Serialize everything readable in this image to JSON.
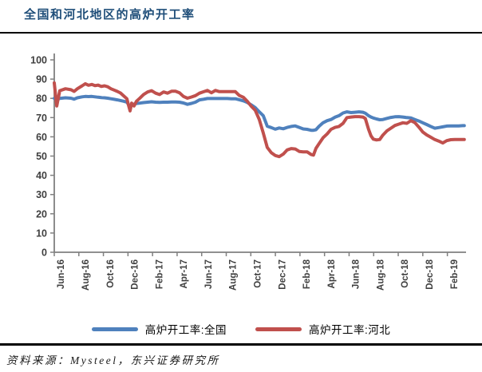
{
  "header": {
    "title": "全国和河北地区的高炉开工率",
    "title_color": "#1F4E79"
  },
  "footer": {
    "source_text": "资料来源：Mysteel，东兴证券研究所"
  },
  "colors": {
    "national_line": "#4F81BD",
    "hebei_line": "#C0504D",
    "axis": "#808080",
    "tick_label": "#3f3f3f",
    "rule": "#000000"
  },
  "chart_data": {
    "type": "line",
    "title": "全国和河北地区的高炉开工率",
    "xlabel": "",
    "ylabel": "",
    "ylim": [
      0,
      100
    ],
    "y_ticks": [
      0,
      10,
      20,
      30,
      40,
      50,
      60,
      70,
      80,
      90,
      100
    ],
    "grid": false,
    "legend_position": "bottom",
    "x_unit": "months since Jun-16 (fractional = weekly readings)",
    "x_tick_step_months": 2,
    "x_tick_labels": [
      "Jun-16",
      "Aug-16",
      "Oct-16",
      "Dec-16",
      "Feb-17",
      "Apr-17",
      "Jun-17",
      "Aug-17",
      "Oct-17",
      "Dec-17",
      "Feb-18",
      "Apr-18",
      "Jun-18",
      "Aug-18",
      "Oct-18",
      "Dec-18",
      "Feb-19"
    ],
    "x": [
      -0.5,
      -0.3,
      -0.05,
      0.41,
      0.86,
      1.12,
      1.38,
      1.77,
      2.03,
      2.29,
      2.55,
      2.81,
      3.07,
      3.33,
      3.59,
      3.85,
      4.11,
      4.37,
      4.63,
      4.89,
      5.15,
      5.41,
      5.54,
      5.67,
      5.8,
      5.99,
      6.19,
      6.45,
      6.77,
      7.1,
      7.42,
      7.75,
      8.07,
      8.4,
      8.72,
      9.05,
      9.37,
      9.69,
      10.02,
      10.34,
      10.67,
      10.99,
      11.32,
      11.64,
      11.97,
      12.29,
      12.62,
      12.94,
      13.27,
      13.59,
      13.92,
      14.24,
      14.56,
      14.89,
      15.21,
      15.54,
      15.86,
      16.19,
      16.51,
      16.84,
      17.16,
      17.49,
      17.81,
      18.14,
      18.46,
      18.79,
      19.11,
      19.44,
      19.76,
      20.08,
      20.41,
      20.6,
      20.8,
      21.06,
      21.38,
      21.71,
      22.03,
      22.36,
      22.68,
      23.01,
      23.33,
      23.66,
      23.98,
      24.31,
      24.63,
      24.82,
      25.08,
      25.28,
      25.47,
      25.73,
      25.99,
      26.25,
      26.58,
      26.9,
      27.23,
      27.55,
      27.88,
      28.2,
      28.53,
      28.85,
      29.18,
      29.5,
      29.82,
      30.15,
      30.47,
      30.8,
      31.12,
      31.45,
      31.77,
      32.1,
      32.42,
      32.75,
      32.88
    ],
    "series": [
      {
        "name": "高炉开工率:全国",
        "color": "#4F81BD",
        "values": [
          80,
          79.3,
          80,
          80.3,
          80.1,
          79.6,
          80.3,
          80.8,
          81,
          80.9,
          81,
          80.8,
          80.6,
          80.4,
          80.3,
          80.1,
          79.8,
          79.5,
          79.2,
          78.9,
          78.5,
          78,
          76.8,
          75.8,
          76.6,
          77,
          77.3,
          77.5,
          77.8,
          78,
          78.2,
          78,
          77.9,
          78,
          78,
          78.1,
          78.1,
          78,
          77.6,
          76.9,
          77.4,
          78,
          79.2,
          79.5,
          79.9,
          79.9,
          79.9,
          79.9,
          79.9,
          79.9,
          79.8,
          79.8,
          79.3,
          78.7,
          77.9,
          76.6,
          75.2,
          73,
          71,
          65.5,
          64.8,
          64,
          64.6,
          64.2,
          64.9,
          65.4,
          65.7,
          64.9,
          64.1,
          63.9,
          63.4,
          63.4,
          63.7,
          65.5,
          67.3,
          68.4,
          69,
          70.2,
          71,
          72.4,
          73,
          72.6,
          72.8,
          73,
          72.8,
          72.3,
          71,
          70.3,
          69.8,
          69.3,
          68.9,
          69,
          69.6,
          70.1,
          70.4,
          70.5,
          70.3,
          70,
          69.8,
          69,
          68.2,
          67.3,
          66.4,
          65.4,
          64.5,
          64.8,
          65.2,
          65.6,
          65.7,
          65.7,
          65.7,
          65.8,
          65.8
        ]
      },
      {
        "name": "高炉开工率:河北",
        "color": "#C0504D",
        "values": [
          88,
          76,
          84,
          85,
          84.5,
          83.6,
          85,
          86.5,
          87.6,
          86.8,
          87.2,
          86.6,
          86.9,
          86.2,
          86.5,
          86,
          85,
          84.3,
          83.6,
          82.8,
          81.3,
          79.8,
          76.5,
          73.5,
          77.5,
          76,
          78.5,
          80,
          82,
          83.3,
          84,
          82.7,
          82,
          83.3,
          82.7,
          83.7,
          83.7,
          82.9,
          81,
          80.1,
          80.7,
          81.4,
          82.7,
          83.4,
          84.1,
          82.9,
          84.1,
          83.5,
          83.5,
          83.5,
          83.5,
          83.5,
          81.5,
          80.6,
          78.5,
          75.9,
          73.8,
          69,
          62,
          54.5,
          51.8,
          50.3,
          49.7,
          51,
          53.2,
          53.9,
          53.7,
          52.4,
          52.2,
          52.2,
          50.8,
          50.5,
          54,
          56.5,
          59.5,
          61.5,
          63.9,
          64.9,
          65.4,
          67,
          70,
          70.3,
          70.5,
          70.5,
          70.3,
          69.5,
          64,
          60.5,
          58.8,
          58.4,
          58.6,
          60.9,
          63.1,
          64.5,
          65.9,
          66.6,
          67.3,
          67,
          68.4,
          67.4,
          65,
          62.5,
          61,
          59.8,
          58.6,
          57.8,
          56.8,
          58,
          58.5,
          58.6,
          58.6,
          58.6,
          58.6
        ]
      }
    ]
  }
}
